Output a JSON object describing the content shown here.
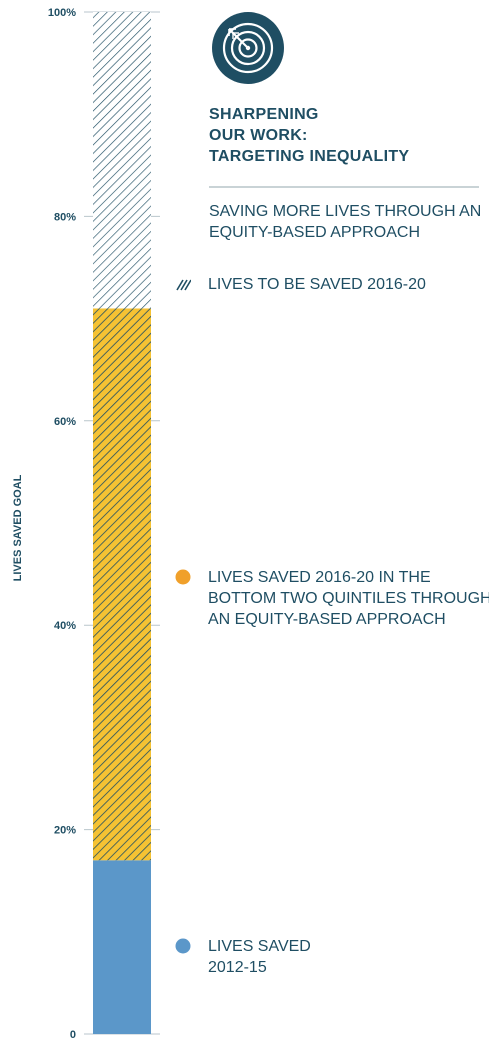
{
  "title": "SHARPENING\nOUR WORK:\nTARGETING INEQUALITY",
  "subtitle": "SAVING MORE LIVES THROUGH AN\nEQUITY-BASED APPROACH",
  "icon": "target-arrow-icon",
  "chart_data": {
    "type": "bar",
    "stacked": true,
    "categories": [
      ""
    ],
    "ylabel": "LIVES SAVED GOAL",
    "ylim": [
      0,
      100
    ],
    "y_ticks": [
      0,
      20,
      40,
      60,
      80,
      100
    ],
    "y_tick_labels": [
      "0",
      "20%",
      "40%",
      "60%",
      "80%",
      "100%"
    ],
    "grid": false,
    "series": [
      {
        "name": "LIVES SAVED\n2012-15",
        "values": [
          17
        ],
        "color": "#5b97c9",
        "pattern": "solid"
      },
      {
        "name": "LIVES SAVED 2016-20 IN THE\nBOTTOM TWO QUINTILES THROUGH\nAN EQUITY-BASED APPROACH",
        "values": [
          54
        ],
        "color": "#f5c233",
        "pattern": "hatch"
      },
      {
        "name": "LIVES TO BE SAVED 2016-20",
        "values": [
          29
        ],
        "color": "#ffffff",
        "pattern": "hatch"
      }
    ],
    "legend_placement": "right"
  },
  "colors": {
    "text": "#1f4e63",
    "blue": "#5b97c9",
    "yellow": "#f5c233",
    "orange_dot": "#f0a02a",
    "hatch": "#1f4e63",
    "rule": "#c9d3d6"
  }
}
